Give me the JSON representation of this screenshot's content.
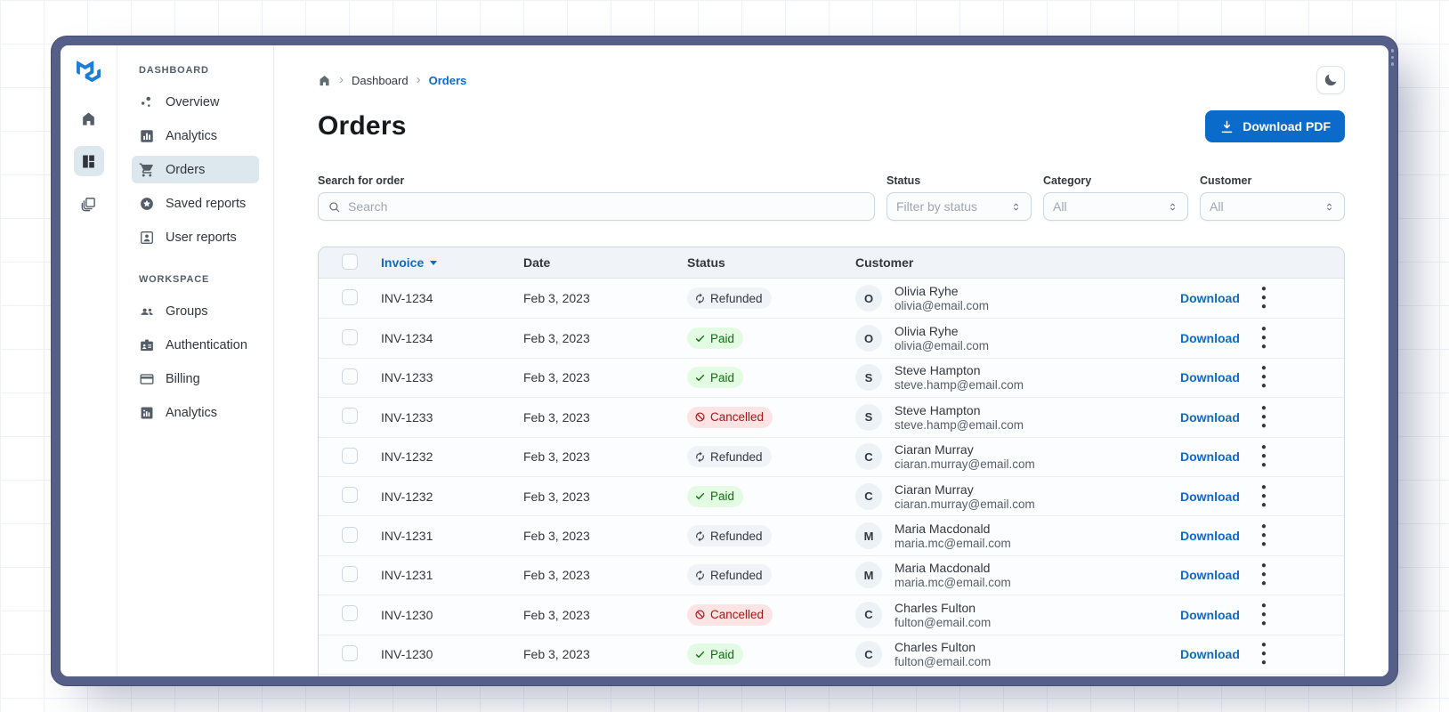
{
  "theme": {
    "accent": "#0B6BCB",
    "frame": "#565F87",
    "sidebar_selected_bg": "#DDE7EE",
    "table_header_bg": "#F0F4F8",
    "border": "#CDD7E1"
  },
  "sidebar": {
    "rail": {
      "logo_icon": "mui-logo",
      "icons": [
        {
          "name": "home",
          "selected": false
        },
        {
          "name": "dashboard",
          "selected": true
        },
        {
          "name": "layers",
          "selected": false
        }
      ]
    },
    "sections": [
      {
        "title": "DASHBOARD",
        "items": [
          {
            "icon": "scatter-chart",
            "label": "Overview",
            "selected": false
          },
          {
            "icon": "bar-chart",
            "label": "Analytics",
            "selected": false
          },
          {
            "icon": "shopping-cart",
            "label": "Orders",
            "selected": true
          },
          {
            "icon": "star",
            "label": "Saved reports",
            "selected": false
          },
          {
            "icon": "person",
            "label": "User reports",
            "selected": false
          }
        ]
      },
      {
        "title": "WORKSPACE",
        "items": [
          {
            "icon": "groups",
            "label": "Groups",
            "selected": false
          },
          {
            "icon": "badge",
            "label": "Authentication",
            "selected": false
          },
          {
            "icon": "credit-card",
            "label": "Billing",
            "selected": false
          },
          {
            "icon": "chart",
            "label": "Analytics",
            "selected": false
          }
        ]
      }
    ]
  },
  "breadcrumb": {
    "home_icon": "home",
    "items": [
      {
        "label": "Dashboard",
        "current": false
      },
      {
        "label": "Orders",
        "current": true
      }
    ]
  },
  "header": {
    "title": "Orders",
    "download_button_label": "Download PDF",
    "download_button_icon": "download",
    "theme_toggle_icon": "moon"
  },
  "filters": {
    "search": {
      "label": "Search for order",
      "placeholder": "Search",
      "icon": "search"
    },
    "selects": [
      {
        "label": "Status",
        "value": "Filter by status"
      },
      {
        "label": "Category",
        "value": "All"
      },
      {
        "label": "Customer",
        "value": "All"
      }
    ]
  },
  "table": {
    "columns": [
      {
        "label": "Invoice",
        "sorted": "desc"
      },
      {
        "label": "Date"
      },
      {
        "label": "Status"
      },
      {
        "label": "Customer"
      }
    ],
    "row_action_label": "Download",
    "status_styles": {
      "Paid": {
        "icon": "check",
        "bg": "#E3FBE3",
        "color": "#136C13"
      },
      "Refunded": {
        "icon": "autorenew",
        "bg": "#F0F4F8",
        "color": "#32383E"
      },
      "Cancelled": {
        "icon": "block",
        "bg": "#FCE4E4",
        "color": "#A21717"
      }
    },
    "rows": [
      {
        "invoice": "INV-1234",
        "date": "Feb 3, 2023",
        "status": "Refunded",
        "initial": "O",
        "name": "Olivia Ryhe",
        "email": "olivia@email.com"
      },
      {
        "invoice": "INV-1234",
        "date": "Feb 3, 2023",
        "status": "Paid",
        "initial": "O",
        "name": "Olivia Ryhe",
        "email": "olivia@email.com"
      },
      {
        "invoice": "INV-1233",
        "date": "Feb 3, 2023",
        "status": "Paid",
        "initial": "S",
        "name": "Steve Hampton",
        "email": "steve.hamp@email.com"
      },
      {
        "invoice": "INV-1233",
        "date": "Feb 3, 2023",
        "status": "Cancelled",
        "initial": "S",
        "name": "Steve Hampton",
        "email": "steve.hamp@email.com"
      },
      {
        "invoice": "INV-1232",
        "date": "Feb 3, 2023",
        "status": "Refunded",
        "initial": "C",
        "name": "Ciaran Murray",
        "email": "ciaran.murray@email.com"
      },
      {
        "invoice": "INV-1232",
        "date": "Feb 3, 2023",
        "status": "Paid",
        "initial": "C",
        "name": "Ciaran Murray",
        "email": "ciaran.murray@email.com"
      },
      {
        "invoice": "INV-1231",
        "date": "Feb 3, 2023",
        "status": "Refunded",
        "initial": "M",
        "name": "Maria Macdonald",
        "email": "maria.mc@email.com"
      },
      {
        "invoice": "INV-1231",
        "date": "Feb 3, 2023",
        "status": "Refunded",
        "initial": "M",
        "name": "Maria Macdonald",
        "email": "maria.mc@email.com"
      },
      {
        "invoice": "INV-1230",
        "date": "Feb 3, 2023",
        "status": "Cancelled",
        "initial": "C",
        "name": "Charles Fulton",
        "email": "fulton@email.com"
      },
      {
        "invoice": "INV-1230",
        "date": "Feb 3, 2023",
        "status": "Paid",
        "initial": "C",
        "name": "Charles Fulton",
        "email": "fulton@email.com"
      }
    ],
    "partial_row_visible": true
  }
}
